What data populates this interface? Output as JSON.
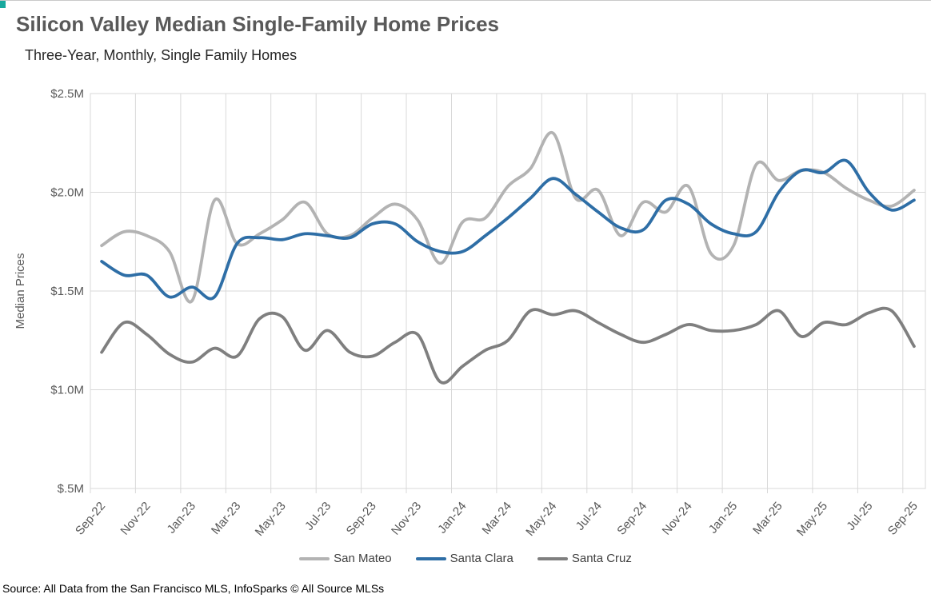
{
  "page": {
    "top_border_color": "#c9c9c9",
    "corner_mark_color": "#18a99e",
    "background": "#ffffff"
  },
  "header": {
    "title": "Silicon Valley Median Single-Family Home Prices",
    "subtitle": "Three-Year, Monthly, Single Family Homes"
  },
  "footer": {
    "source": "Source: All Data from the San Francisco MLS, InfoSparks © All Source MLSs"
  },
  "chart_data": {
    "type": "line",
    "line_style": "smooth",
    "title": "Silicon Valley Median Single-Family Home Prices",
    "subtitle": "Three-Year, Monthly, Single Family Homes",
    "xlabel": "",
    "ylabel": "Median Prices",
    "values_unit": "$M",
    "ylim": [
      0.5,
      2.5
    ],
    "grid": true,
    "legend_position": "bottom",
    "grid_color": "#d9d9d9",
    "axis_text_color": "#595959",
    "x": [
      "Sep-22",
      "Oct-22",
      "Nov-22",
      "Dec-22",
      "Jan-23",
      "Feb-23",
      "Mar-23",
      "Apr-23",
      "May-23",
      "Jun-23",
      "Jul-23",
      "Aug-23",
      "Sep-23",
      "Oct-23",
      "Nov-23",
      "Dec-23",
      "Jan-24",
      "Feb-24",
      "Mar-24",
      "Apr-24",
      "May-24",
      "Jun-24",
      "Jul-24",
      "Aug-24",
      "Sep-24",
      "Oct-24",
      "Nov-24",
      "Dec-24",
      "Jan-25",
      "Feb-25",
      "Mar-25",
      "Apr-25",
      "May-25",
      "Jun-25",
      "Jul-25",
      "Aug-25",
      "Sep-25"
    ],
    "x_tick_labels": [
      "Sep-22",
      "Nov-22",
      "Jan-23",
      "Mar-23",
      "May-23",
      "Jul-23",
      "Sep-23",
      "Nov-23",
      "Jan-24",
      "Mar-24",
      "May-24",
      "Jul-24",
      "Sep-24",
      "Nov-24",
      "Jan-25",
      "Mar-25",
      "May-25",
      "Jul-25",
      "Sep-25"
    ],
    "y_ticks": [
      {
        "label": "$2.5M",
        "value": 2.5
      },
      {
        "label": "$2.0M",
        "value": 2.0
      },
      {
        "label": "$1.5M",
        "value": 1.5
      },
      {
        "label": "$1.0M",
        "value": 1.0
      },
      {
        "label": "$.5M",
        "value": 0.5
      }
    ],
    "series": [
      {
        "name": "San Mateo",
        "color": "#b3b3b3",
        "values": [
          1.73,
          1.8,
          1.78,
          1.7,
          1.45,
          1.96,
          1.74,
          1.79,
          1.86,
          1.95,
          1.79,
          1.78,
          1.87,
          1.94,
          1.86,
          1.64,
          1.85,
          1.87,
          2.03,
          2.12,
          2.3,
          1.97,
          2.01,
          1.78,
          1.95,
          1.9,
          2.03,
          1.69,
          1.73,
          2.14,
          2.06,
          2.11,
          2.1,
          2.02,
          1.96,
          1.93,
          2.01
        ]
      },
      {
        "name": "Santa Clara",
        "color": "#2e6ea6",
        "values": [
          1.65,
          1.58,
          1.58,
          1.47,
          1.52,
          1.47,
          1.74,
          1.77,
          1.76,
          1.79,
          1.78,
          1.77,
          1.84,
          1.84,
          1.75,
          1.7,
          1.7,
          1.78,
          1.87,
          1.97,
          2.07,
          1.99,
          1.9,
          1.82,
          1.81,
          1.96,
          1.94,
          1.84,
          1.79,
          1.8,
          2.0,
          2.11,
          2.1,
          2.16,
          2.0,
          1.91,
          1.96
        ]
      },
      {
        "name": "Santa Cruz",
        "color": "#7f7f7f",
        "values": [
          1.19,
          1.34,
          1.28,
          1.18,
          1.14,
          1.21,
          1.17,
          1.36,
          1.37,
          1.2,
          1.3,
          1.19,
          1.17,
          1.24,
          1.28,
          1.04,
          1.12,
          1.2,
          1.25,
          1.4,
          1.38,
          1.4,
          1.34,
          1.28,
          1.24,
          1.28,
          1.33,
          1.3,
          1.3,
          1.33,
          1.4,
          1.27,
          1.34,
          1.33,
          1.39,
          1.4,
          1.22
        ]
      }
    ]
  }
}
